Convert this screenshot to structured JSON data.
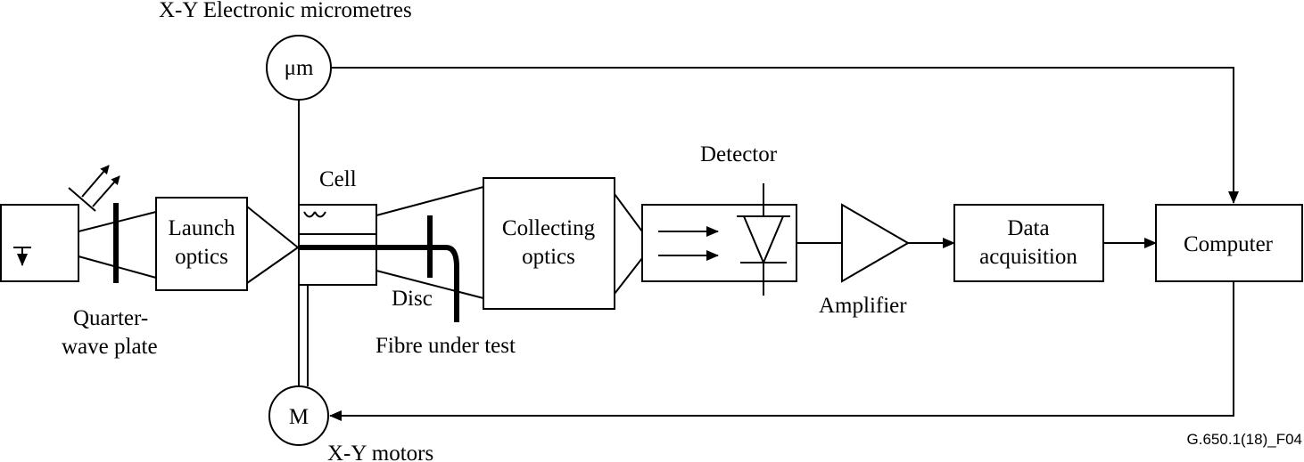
{
  "title": "X-Y Electronic micrometres",
  "blocks": {
    "launch_optics": [
      "Launch",
      "optics"
    ],
    "collecting_optics": [
      "Collecting",
      "optics"
    ],
    "data_acquisition": [
      "Data",
      "acquisition"
    ],
    "computer": "Computer"
  },
  "labels": {
    "quarter_wave_plate": [
      "Quarter-",
      "wave plate"
    ],
    "cell": "Cell",
    "disc": "Disc",
    "fibre_under_test": "Fibre under test",
    "detector": "Detector",
    "amplifier": "Amplifier",
    "xy_motors": "X-Y motors"
  },
  "symbols": {
    "micrometre": "μm",
    "motor": "M"
  },
  "figure_ref": "G.650.1(18)_F04"
}
